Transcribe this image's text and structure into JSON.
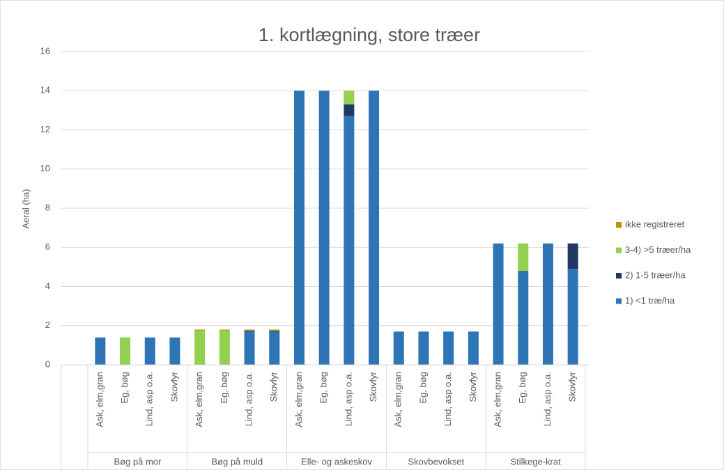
{
  "chart_data": {
    "type": "stacked_bar",
    "title": "1. kortlægning, store træer",
    "ylabel": "Aeral (ha)",
    "groups": [
      "Bøg på mor",
      "Bøg på muld",
      "Elle- og askeskov",
      "Skovbevokset",
      "Stilkege-krat"
    ],
    "categories": [
      "Ask, elm,gran",
      "Eg, bøg",
      "Lind, asp o.a.",
      "Skovfyr",
      "Ask, elm,gran",
      "Eg, bøg",
      "Lind, asp o.a.",
      "Skovfyr",
      "Ask, elm,gran",
      "Eg, bøg",
      "Lind, asp o.a.",
      "Skovfyr",
      "Ask, elm,gran",
      "Eg, bøg",
      "Lind, asp o.a.",
      "Skovfyr",
      "Ask, elm,gran",
      "Eg, bøg",
      "Lind, asp o.a.",
      "Skovfyr"
    ],
    "series": [
      {
        "name": "1) <1 træ/ha",
        "color": "#2e75b6",
        "values": [
          1.4,
          0,
          1.4,
          1.4,
          0,
          0,
          1.7,
          1.7,
          14,
          14,
          12.7,
          14,
          1.7,
          1.7,
          1.7,
          1.7,
          6.2,
          4.8,
          6.2,
          4.9
        ]
      },
      {
        "name": "2) 1-5 træer/ha",
        "color": "#1f3864",
        "values": [
          0,
          0,
          0,
          0,
          0,
          0,
          0.05,
          0.05,
          0,
          0,
          0.6,
          0,
          0,
          0,
          0,
          0,
          0,
          0,
          0,
          1.3
        ]
      },
      {
        "name": "3-4) >5 træer/ha",
        "color": "#92d050",
        "values": [
          0,
          1.4,
          0,
          0,
          1.75,
          1.75,
          0,
          0,
          0,
          0,
          0.7,
          0,
          0,
          0,
          0,
          0,
          0,
          1.4,
          0,
          0
        ]
      },
      {
        "name": "ikke registreret",
        "color": "#bf9000",
        "values": [
          0,
          0,
          0,
          0,
          0.05,
          0.05,
          0.05,
          0.05,
          0,
          0,
          0,
          0,
          0,
          0,
          0,
          0,
          0,
          0,
          0,
          0
        ]
      }
    ],
    "ylim": [
      0,
      16
    ],
    "yticks": [
      0,
      2,
      4,
      6,
      8,
      10,
      12,
      14,
      16
    ],
    "grid": true
  }
}
